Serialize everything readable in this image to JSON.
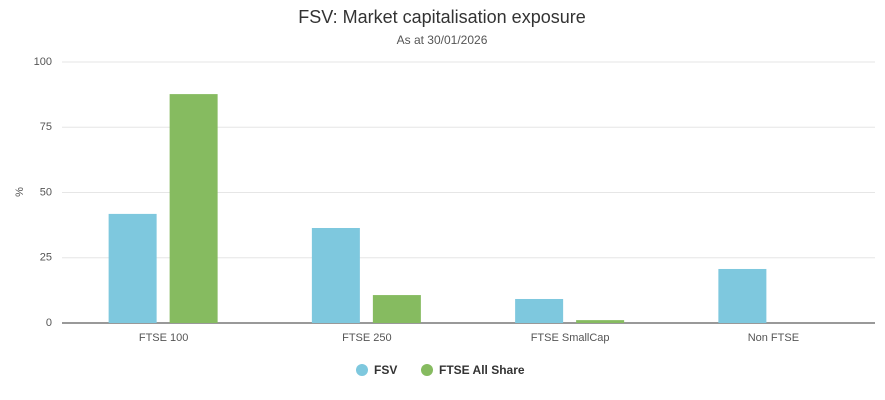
{
  "chart_data": {
    "type": "bar",
    "title": "FSV: Market capitalisation exposure",
    "subtitle": "As at 30/01/2026",
    "y_label": "%",
    "categories": [
      "FTSE 100",
      "FTSE 250",
      "FTSE SmallCap",
      "Non FTSE"
    ],
    "series": [
      {
        "name": "FSV",
        "color": "#7ec8de",
        "values": [
          41.8,
          36.4,
          9.2,
          20.7
        ]
      },
      {
        "name": "FTSE All Share",
        "color": "#86bb60",
        "values": [
          87.7,
          10.7,
          1.1,
          0
        ]
      }
    ],
    "ylim": [
      0,
      100
    ],
    "yticks": [
      0,
      25,
      50,
      75,
      100
    ],
    "grid": true
  }
}
